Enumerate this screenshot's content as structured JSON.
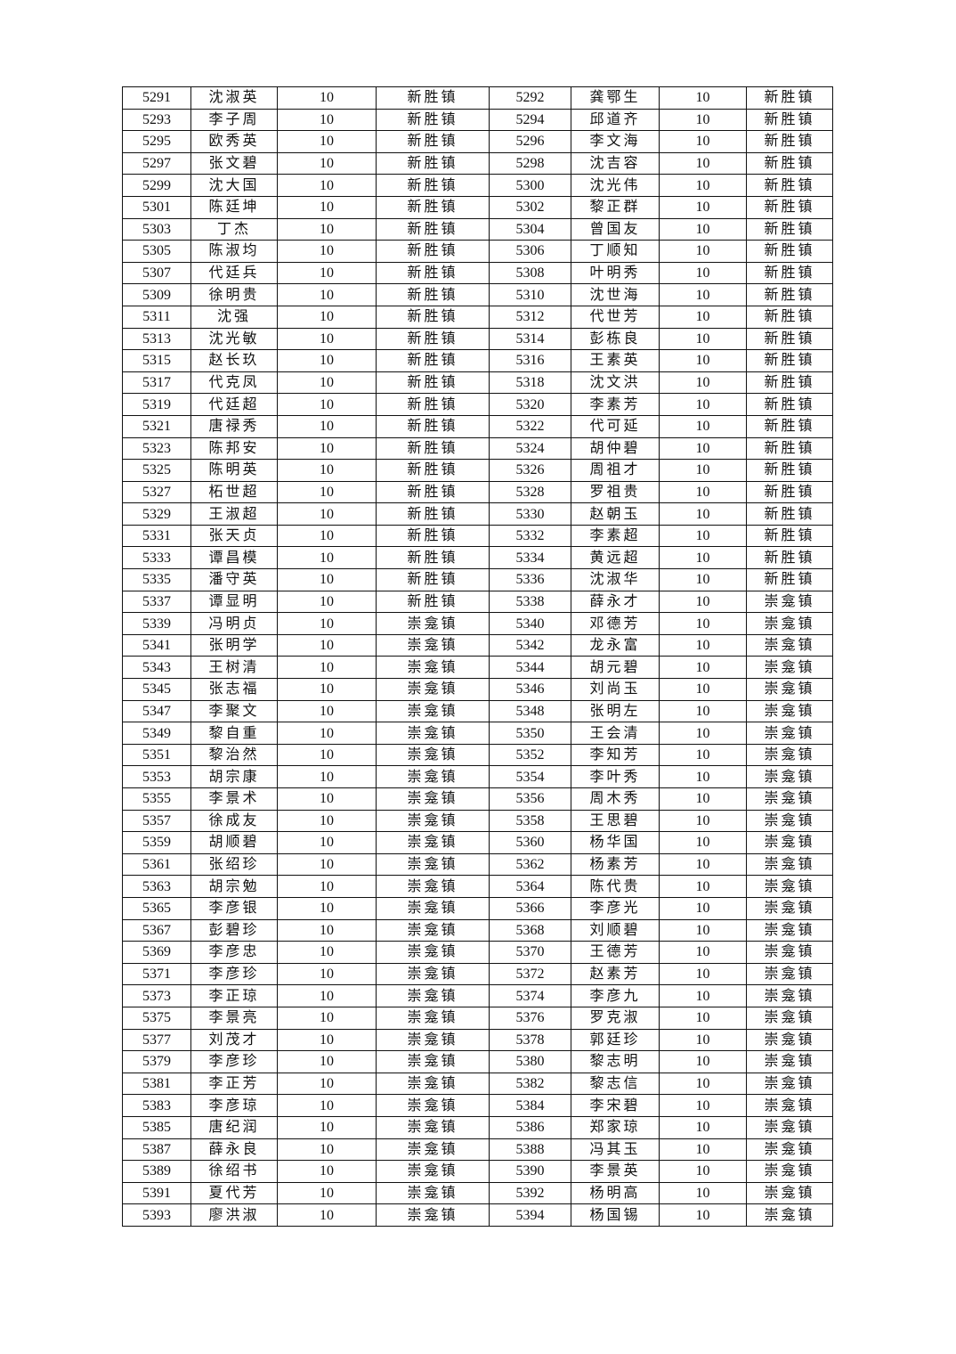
{
  "table": {
    "rows": [
      [
        "5291",
        "沈淑英",
        "10",
        "新胜镇",
        "5292",
        "龚鄂生",
        "10",
        "新胜镇"
      ],
      [
        "5293",
        "李子周",
        "10",
        "新胜镇",
        "5294",
        "邱道齐",
        "10",
        "新胜镇"
      ],
      [
        "5295",
        "欧秀英",
        "10",
        "新胜镇",
        "5296",
        "李文海",
        "10",
        "新胜镇"
      ],
      [
        "5297",
        "张文碧",
        "10",
        "新胜镇",
        "5298",
        "沈吉容",
        "10",
        "新胜镇"
      ],
      [
        "5299",
        "沈大国",
        "10",
        "新胜镇",
        "5300",
        "沈光伟",
        "10",
        "新胜镇"
      ],
      [
        "5301",
        "陈廷坤",
        "10",
        "新胜镇",
        "5302",
        "黎正群",
        "10",
        "新胜镇"
      ],
      [
        "5303",
        "丁杰",
        "10",
        "新胜镇",
        "5304",
        "曾国友",
        "10",
        "新胜镇"
      ],
      [
        "5305",
        "陈淑均",
        "10",
        "新胜镇",
        "5306",
        "丁顺知",
        "10",
        "新胜镇"
      ],
      [
        "5307",
        "代廷兵",
        "10",
        "新胜镇",
        "5308",
        "叶明秀",
        "10",
        "新胜镇"
      ],
      [
        "5309",
        "徐明贵",
        "10",
        "新胜镇",
        "5310",
        "沈世海",
        "10",
        "新胜镇"
      ],
      [
        "5311",
        "沈强",
        "10",
        "新胜镇",
        "5312",
        "代世芳",
        "10",
        "新胜镇"
      ],
      [
        "5313",
        "沈光敏",
        "10",
        "新胜镇",
        "5314",
        "彭栋良",
        "10",
        "新胜镇"
      ],
      [
        "5315",
        "赵长玖",
        "10",
        "新胜镇",
        "5316",
        "王素英",
        "10",
        "新胜镇"
      ],
      [
        "5317",
        "代克凤",
        "10",
        "新胜镇",
        "5318",
        "沈文洪",
        "10",
        "新胜镇"
      ],
      [
        "5319",
        "代廷超",
        "10",
        "新胜镇",
        "5320",
        "李素芳",
        "10",
        "新胜镇"
      ],
      [
        "5321",
        "唐禄秀",
        "10",
        "新胜镇",
        "5322",
        "代可延",
        "10",
        "新胜镇"
      ],
      [
        "5323",
        "陈邦安",
        "10",
        "新胜镇",
        "5324",
        "胡仲碧",
        "10",
        "新胜镇"
      ],
      [
        "5325",
        "陈明英",
        "10",
        "新胜镇",
        "5326",
        "周祖才",
        "10",
        "新胜镇"
      ],
      [
        "5327",
        "柘世超",
        "10",
        "新胜镇",
        "5328",
        "罗祖贵",
        "10",
        "新胜镇"
      ],
      [
        "5329",
        "王淑超",
        "10",
        "新胜镇",
        "5330",
        "赵朝玉",
        "10",
        "新胜镇"
      ],
      [
        "5331",
        "张天贞",
        "10",
        "新胜镇",
        "5332",
        "李素超",
        "10",
        "新胜镇"
      ],
      [
        "5333",
        "谭昌模",
        "10",
        "新胜镇",
        "5334",
        "黄远超",
        "10",
        "新胜镇"
      ],
      [
        "5335",
        "潘守英",
        "10",
        "新胜镇",
        "5336",
        "沈淑华",
        "10",
        "新胜镇"
      ],
      [
        "5337",
        "谭显明",
        "10",
        "新胜镇",
        "5338",
        "薛永才",
        "10",
        "崇龛镇"
      ],
      [
        "5339",
        "冯明贞",
        "10",
        "崇龛镇",
        "5340",
        "邓德芳",
        "10",
        "崇龛镇"
      ],
      [
        "5341",
        "张明学",
        "10",
        "崇龛镇",
        "5342",
        "龙永富",
        "10",
        "崇龛镇"
      ],
      [
        "5343",
        "王树清",
        "10",
        "崇龛镇",
        "5344",
        "胡元碧",
        "10",
        "崇龛镇"
      ],
      [
        "5345",
        "张志福",
        "10",
        "崇龛镇",
        "5346",
        "刘尚玉",
        "10",
        "崇龛镇"
      ],
      [
        "5347",
        "李聚文",
        "10",
        "崇龛镇",
        "5348",
        "张明左",
        "10",
        "崇龛镇"
      ],
      [
        "5349",
        "黎自重",
        "10",
        "崇龛镇",
        "5350",
        "王会清",
        "10",
        "崇龛镇"
      ],
      [
        "5351",
        "黎治然",
        "10",
        "崇龛镇",
        "5352",
        "李知芳",
        "10",
        "崇龛镇"
      ],
      [
        "5353",
        "胡宗康",
        "10",
        "崇龛镇",
        "5354",
        "李叶秀",
        "10",
        "崇龛镇"
      ],
      [
        "5355",
        "李景术",
        "10",
        "崇龛镇",
        "5356",
        "周木秀",
        "10",
        "崇龛镇"
      ],
      [
        "5357",
        "徐成友",
        "10",
        "崇龛镇",
        "5358",
        "王思碧",
        "10",
        "崇龛镇"
      ],
      [
        "5359",
        "胡顺碧",
        "10",
        "崇龛镇",
        "5360",
        "杨华国",
        "10",
        "崇龛镇"
      ],
      [
        "5361",
        "张绍珍",
        "10",
        "崇龛镇",
        "5362",
        "杨素芳",
        "10",
        "崇龛镇"
      ],
      [
        "5363",
        "胡宗勉",
        "10",
        "崇龛镇",
        "5364",
        "陈代贵",
        "10",
        "崇龛镇"
      ],
      [
        "5365",
        "李彦银",
        "10",
        "崇龛镇",
        "5366",
        "李彦光",
        "10",
        "崇龛镇"
      ],
      [
        "5367",
        "彭碧珍",
        "10",
        "崇龛镇",
        "5368",
        "刘顺碧",
        "10",
        "崇龛镇"
      ],
      [
        "5369",
        "李彦忠",
        "10",
        "崇龛镇",
        "5370",
        "王德芳",
        "10",
        "崇龛镇"
      ],
      [
        "5371",
        "李彦珍",
        "10",
        "崇龛镇",
        "5372",
        "赵素芳",
        "10",
        "崇龛镇"
      ],
      [
        "5373",
        "李正琼",
        "10",
        "崇龛镇",
        "5374",
        "李彦九",
        "10",
        "崇龛镇"
      ],
      [
        "5375",
        "李景亮",
        "10",
        "崇龛镇",
        "5376",
        "罗克淑",
        "10",
        "崇龛镇"
      ],
      [
        "5377",
        "刘茂才",
        "10",
        "崇龛镇",
        "5378",
        "郭廷珍",
        "10",
        "崇龛镇"
      ],
      [
        "5379",
        "李彦珍",
        "10",
        "崇龛镇",
        "5380",
        "黎志明",
        "10",
        "崇龛镇"
      ],
      [
        "5381",
        "李正芳",
        "10",
        "崇龛镇",
        "5382",
        "黎志信",
        "10",
        "崇龛镇"
      ],
      [
        "5383",
        "李彦琼",
        "10",
        "崇龛镇",
        "5384",
        "李宋碧",
        "10",
        "崇龛镇"
      ],
      [
        "5385",
        "唐纪润",
        "10",
        "崇龛镇",
        "5386",
        "郑家琼",
        "10",
        "崇龛镇"
      ],
      [
        "5387",
        "薛永良",
        "10",
        "崇龛镇",
        "5388",
        "冯其玉",
        "10",
        "崇龛镇"
      ],
      [
        "5389",
        "徐绍书",
        "10",
        "崇龛镇",
        "5390",
        "李景英",
        "10",
        "崇龛镇"
      ],
      [
        "5391",
        "夏代芳",
        "10",
        "崇龛镇",
        "5392",
        "杨明高",
        "10",
        "崇龛镇"
      ],
      [
        "5393",
        "廖洪淑",
        "10",
        "崇龛镇",
        "5394",
        "杨国锡",
        "10",
        "崇龛镇"
      ]
    ]
  }
}
